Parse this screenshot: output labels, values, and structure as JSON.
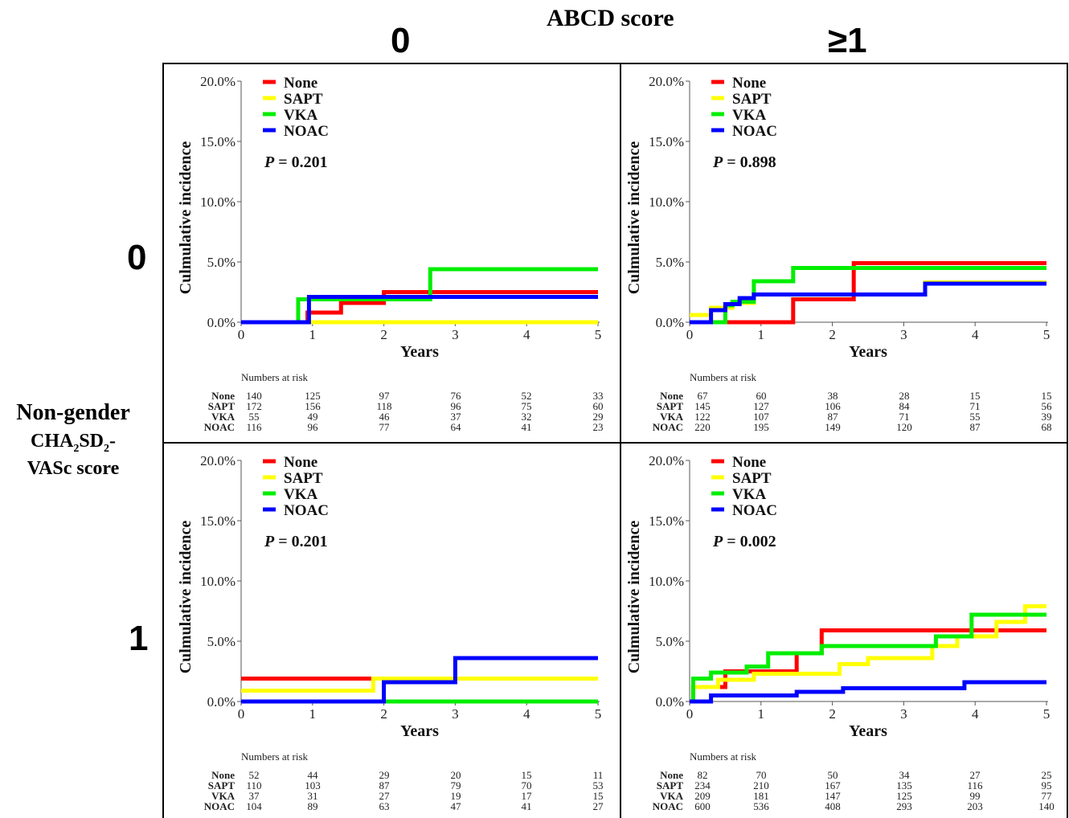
{
  "header": {
    "title": "ABCD score",
    "columns": [
      "0",
      "≥1"
    ]
  },
  "rows": [
    "0",
    "1"
  ],
  "side_label": {
    "line1": "Non-gender",
    "line2_main": "CHA",
    "sub1": "2",
    "line2_mid": "SD",
    "sub2": "2",
    "line2_end": "-",
    "line3": "VASc score"
  },
  "colors": {
    "None": "#ff0000",
    "SAPT": "#ffff00",
    "VKA": "#00ee00",
    "NOAC": "#0000ff"
  },
  "chart_data": [
    {
      "id": "abcd0-chads0",
      "type": "line",
      "step": true,
      "xlabel": "Years",
      "ylabel": "Culmulative incidence",
      "xlim": [
        0,
        5
      ],
      "ylim": [
        0,
        20
      ],
      "xticks": [
        "0",
        "1",
        "2",
        "3",
        "4",
        "5"
      ],
      "yticks": [
        "0.0%",
        "5.0%",
        "10.0%",
        "15.0%",
        "20.0%"
      ],
      "legend": [
        "None",
        "SAPT",
        "VKA",
        "NOAC"
      ],
      "legend_position": "top-left",
      "p_label": "P",
      "p_value": "= 0.201",
      "series": [
        {
          "name": "None",
          "x": [
            0,
            0.93,
            1.4,
            2.0,
            5
          ],
          "y": [
            0,
            0.8,
            1.6,
            2.5,
            2.5
          ]
        },
        {
          "name": "SAPT",
          "x": [
            0,
            5
          ],
          "y": [
            0,
            0
          ]
        },
        {
          "name": "VKA",
          "x": [
            0,
            0.8,
            2.65,
            5
          ],
          "y": [
            0,
            1.9,
            4.4,
            4.4
          ]
        },
        {
          "name": "NOAC",
          "x": [
            0,
            0.95,
            5
          ],
          "y": [
            0,
            2.1,
            2.1
          ]
        }
      ],
      "risk_title": "Numbers at risk",
      "risk_table": [
        {
          "name": "None",
          "values": [
            "140",
            "125",
            "97",
            "76",
            "52",
            "33"
          ]
        },
        {
          "name": "SAPT",
          "values": [
            "172",
            "156",
            "118",
            "96",
            "75",
            "60"
          ]
        },
        {
          "name": "VKA",
          "values": [
            "55",
            "49",
            "46",
            "37",
            "32",
            "29"
          ]
        },
        {
          "name": "NOAC",
          "values": [
            "116",
            "96",
            "77",
            "64",
            "41",
            "23"
          ]
        }
      ]
    },
    {
      "id": "abcd1-chads0",
      "type": "line",
      "step": true,
      "xlabel": "Years",
      "ylabel": "Culmulative incidence",
      "xlim": [
        0,
        5
      ],
      "ylim": [
        0,
        20
      ],
      "xticks": [
        "0",
        "1",
        "2",
        "3",
        "4",
        "5"
      ],
      "yticks": [
        "0.0%",
        "5.0%",
        "10.0%",
        "15.0%",
        "20.0%"
      ],
      "legend": [
        "None",
        "SAPT",
        "VKA",
        "NOAC"
      ],
      "legend_position": "top-left",
      "p_label": "P",
      "p_value": "= 0.898",
      "series": [
        {
          "name": "None",
          "x": [
            0,
            1.45,
            2.3,
            5
          ],
          "y": [
            0,
            1.9,
            4.9,
            4.9
          ]
        },
        {
          "name": "SAPT",
          "x": [
            0,
            0.3,
            0.6,
            0.9,
            3.3,
            5
          ],
          "y": [
            0.6,
            1.2,
            1.6,
            2.3,
            3.3,
            3.3
          ]
        },
        {
          "name": "VKA",
          "x": [
            0,
            0.5,
            0.6,
            0.9,
            1.45,
            5
          ],
          "y": [
            0,
            1.4,
            1.7,
            3.4,
            4.5,
            4.5
          ]
        },
        {
          "name": "NOAC",
          "x": [
            0,
            0.3,
            0.5,
            0.7,
            0.9,
            3.3,
            5
          ],
          "y": [
            0,
            1.0,
            1.5,
            2.0,
            2.3,
            3.2,
            3.2
          ]
        }
      ],
      "risk_title": "Numbers at risk",
      "risk_table": [
        {
          "name": "None",
          "values": [
            "67",
            "60",
            "38",
            "28",
            "15",
            "15"
          ]
        },
        {
          "name": "SAPT",
          "values": [
            "145",
            "127",
            "106",
            "84",
            "71",
            "56"
          ]
        },
        {
          "name": "VKA",
          "values": [
            "122",
            "107",
            "87",
            "71",
            "55",
            "39"
          ]
        },
        {
          "name": "NOAC",
          "values": [
            "220",
            "195",
            "149",
            "120",
            "87",
            "68"
          ]
        }
      ]
    },
    {
      "id": "abcd0-chads1",
      "type": "line",
      "step": true,
      "xlabel": "Years",
      "ylabel": "Culmulative incidence",
      "xlim": [
        0,
        5
      ],
      "ylim": [
        0,
        20
      ],
      "xticks": [
        "0",
        "1",
        "2",
        "3",
        "4",
        "5"
      ],
      "yticks": [
        "0.0%",
        "5.0%",
        "10.0%",
        "15.0%",
        "20.0%"
      ],
      "legend": [
        "None",
        "SAPT",
        "VKA",
        "NOAC"
      ],
      "legend_position": "top-left",
      "p_label": "P",
      "p_value": "= 0.201",
      "series": [
        {
          "name": "None",
          "x": [
            0,
            5
          ],
          "y": [
            1.9,
            1.9
          ]
        },
        {
          "name": "SAPT",
          "x": [
            0,
            1.85,
            5
          ],
          "y": [
            0.9,
            1.9,
            1.9
          ]
        },
        {
          "name": "VKA",
          "x": [
            0,
            5
          ],
          "y": [
            0,
            0
          ]
        },
        {
          "name": "NOAC",
          "x": [
            0,
            2.0,
            3.0,
            5
          ],
          "y": [
            0,
            1.6,
            3.6,
            3.6
          ]
        }
      ],
      "risk_title": "Numbers at risk",
      "risk_table": [
        {
          "name": "None",
          "values": [
            "52",
            "44",
            "29",
            "20",
            "15",
            "11"
          ]
        },
        {
          "name": "SAPT",
          "values": [
            "110",
            "103",
            "87",
            "79",
            "70",
            "53"
          ]
        },
        {
          "name": "VKA",
          "values": [
            "37",
            "31",
            "27",
            "19",
            "17",
            "15"
          ]
        },
        {
          "name": "NOAC",
          "values": [
            "104",
            "89",
            "63",
            "47",
            "41",
            "27"
          ]
        }
      ]
    },
    {
      "id": "abcd1-chads1",
      "type": "line",
      "step": true,
      "xlabel": "Years",
      "ylabel": "Culmulative incidence",
      "xlim": [
        0,
        5
      ],
      "ylim": [
        0,
        20
      ],
      "xticks": [
        "0",
        "1",
        "2",
        "3",
        "4",
        "5"
      ],
      "yticks": [
        "0.0%",
        "5.0%",
        "10.0%",
        "15.0%",
        "20.0%"
      ],
      "legend": [
        "None",
        "SAPT",
        "VKA",
        "NOAC"
      ],
      "legend_position": "top-left",
      "p_label": "P",
      "p_value": "= 0.002",
      "series": [
        {
          "name": "None",
          "x": [
            0,
            0.05,
            0.5,
            1.5,
            1.85,
            5
          ],
          "y": [
            0,
            1.2,
            2.5,
            4.0,
            5.9,
            5.9
          ]
        },
        {
          "name": "SAPT",
          "x": [
            0,
            0.05,
            0.4,
            0.9,
            2.1,
            2.5,
            3.4,
            3.75,
            4.3,
            4.7,
            5
          ],
          "y": [
            0,
            1.2,
            1.8,
            2.3,
            3.1,
            3.6,
            4.6,
            5.4,
            6.6,
            7.9,
            7.9
          ]
        },
        {
          "name": "VKA",
          "x": [
            0,
            0.05,
            0.3,
            0.8,
            1.1,
            1.85,
            3.45,
            3.95,
            5
          ],
          "y": [
            0,
            1.9,
            2.4,
            2.9,
            4.0,
            4.6,
            5.4,
            7.2,
            7.2
          ]
        },
        {
          "name": "NOAC",
          "x": [
            0,
            0.3,
            1.5,
            2.15,
            3.85,
            5
          ],
          "y": [
            0,
            0.5,
            0.8,
            1.1,
            1.6,
            1.6
          ]
        }
      ],
      "risk_title": "Numbers at risk",
      "risk_table": [
        {
          "name": "None",
          "values": [
            "82",
            "70",
            "50",
            "34",
            "27",
            "25"
          ]
        },
        {
          "name": "SAPT",
          "values": [
            "234",
            "210",
            "167",
            "135",
            "116",
            "95"
          ]
        },
        {
          "name": "VKA",
          "values": [
            "209",
            "181",
            "147",
            "125",
            "99",
            "77"
          ]
        },
        {
          "name": "NOAC",
          "values": [
            "600",
            "536",
            "408",
            "293",
            "203",
            "140"
          ]
        }
      ]
    }
  ]
}
